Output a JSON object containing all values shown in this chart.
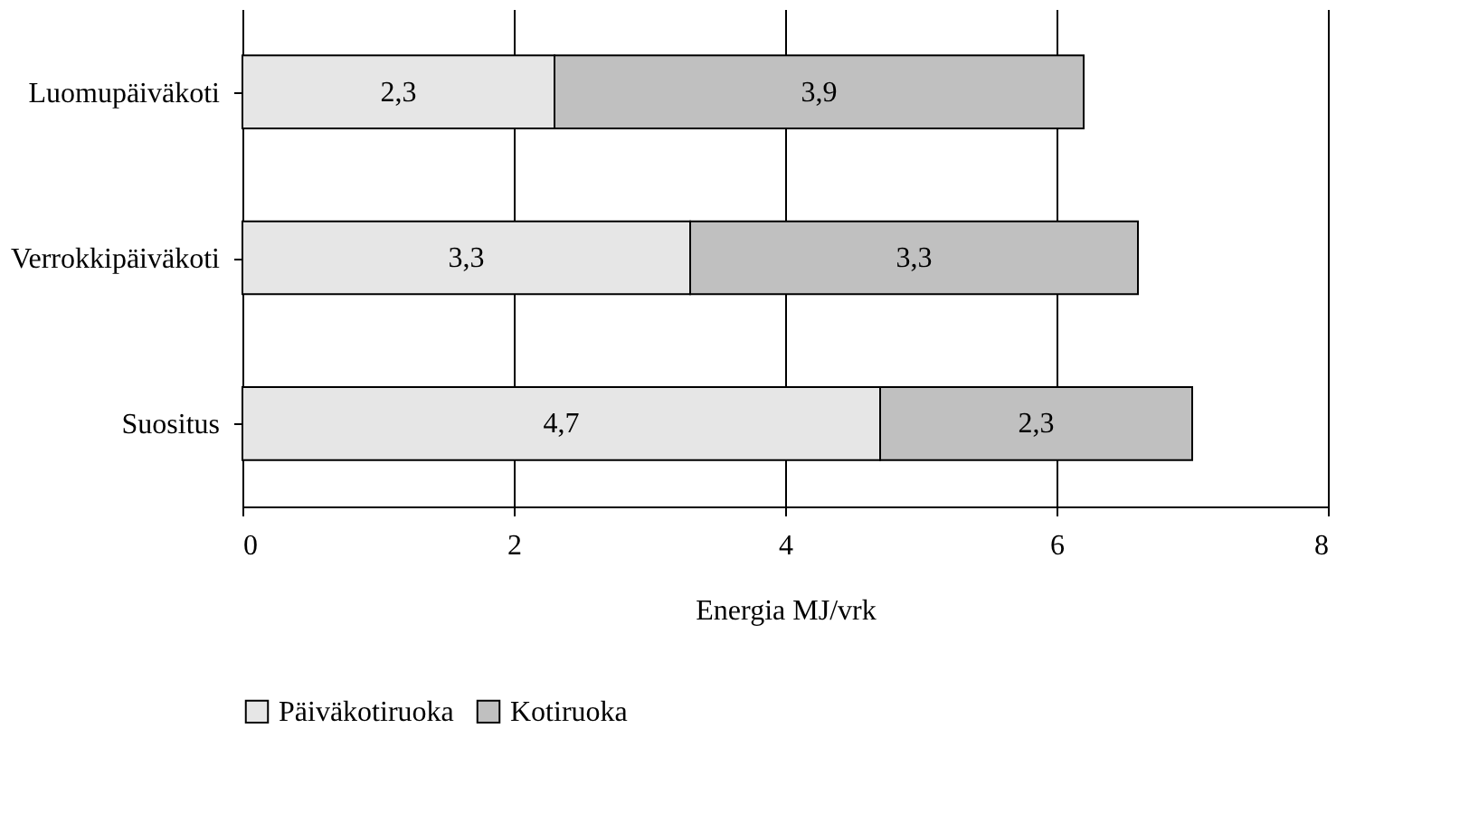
{
  "chart_data": {
    "type": "bar",
    "orientation": "horizontal",
    "stacked": true,
    "categories": [
      "Luomupäiväkoti",
      "Verrokkipäiväkoti",
      "Suositus"
    ],
    "series": [
      {
        "name": "Päiväkotiruoka",
        "color": "#e6e6e6",
        "values": [
          2.3,
          3.3,
          4.7
        ],
        "value_labels": [
          "2,3",
          "3,3",
          "4,7"
        ]
      },
      {
        "name": "Kotiruoka",
        "color": "#c0c0c0",
        "values": [
          3.9,
          3.3,
          2.3
        ],
        "value_labels": [
          "3,9",
          "3,3",
          "2,3"
        ]
      }
    ],
    "xlabel": "Energia MJ/vrk",
    "xlim": [
      0,
      8
    ],
    "xticks": [
      0,
      2,
      4,
      6,
      8
    ],
    "grid": "x",
    "legend": "bottom"
  }
}
